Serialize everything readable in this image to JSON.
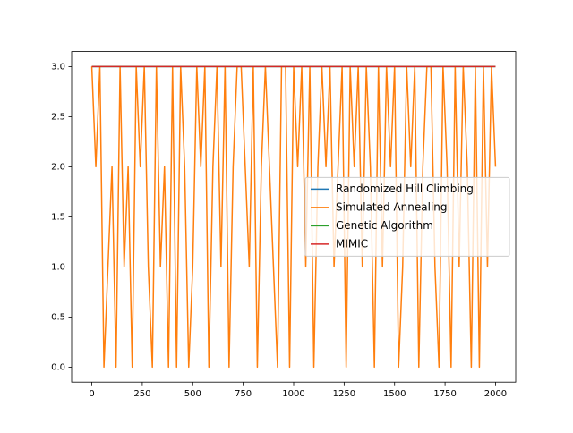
{
  "chart_data": {
    "type": "line",
    "xlim": [
      -100,
      2100
    ],
    "xticks": [
      0,
      250,
      500,
      750,
      1000,
      1250,
      1500,
      1750,
      2000
    ],
    "ylim": [
      -0.15,
      3.15
    ],
    "yticks": [
      {
        "value": 0,
        "label": "0.0"
      },
      0.5,
      {
        "value": 1,
        "label": "1.0"
      },
      1.5,
      {
        "value": 2,
        "label": "2.0"
      },
      2.5,
      {
        "value": 3,
        "label": "3.0"
      }
    ],
    "grid": false,
    "legend": "center right",
    "series": [
      {
        "name": "Randomized Hill Climbing",
        "color": "#1f77b4",
        "x": [
          0,
          2000
        ],
        "values": [
          3,
          3
        ]
      },
      {
        "name": "Simulated Annealing",
        "color": "#ff7f0e",
        "x": [
          0,
          20,
          40,
          60,
          80,
          100,
          120,
          140,
          160,
          180,
          200,
          220,
          240,
          260,
          280,
          300,
          320,
          340,
          360,
          380,
          400,
          420,
          440,
          460,
          480,
          500,
          520,
          540,
          560,
          580,
          600,
          620,
          640,
          660,
          680,
          700,
          720,
          740,
          760,
          780,
          800,
          820,
          840,
          860,
          880,
          900,
          920,
          940,
          960,
          980,
          1000,
          1020,
          1040,
          1060,
          1080,
          1100,
          1120,
          1140,
          1160,
          1180,
          1200,
          1220,
          1240,
          1260,
          1280,
          1300,
          1320,
          1340,
          1360,
          1380,
          1400,
          1420,
          1440,
          1460,
          1480,
          1500,
          1520,
          1540,
          1560,
          1580,
          1600,
          1620,
          1640,
          1660,
          1680,
          1700,
          1720,
          1740,
          1760,
          1780,
          1800,
          1820,
          1840,
          1860,
          1880,
          1900,
          1920,
          1940,
          1960,
          1980,
          2000
        ],
        "values": [
          3,
          2,
          3,
          0,
          1,
          2,
          0,
          3,
          1,
          2,
          0,
          3,
          2,
          3,
          1,
          0,
          3,
          1,
          2,
          0,
          3,
          0,
          3,
          2,
          0,
          1,
          3,
          2,
          3,
          0,
          2,
          3,
          1,
          3,
          0,
          2,
          3,
          3,
          2,
          1,
          3,
          0,
          2,
          3,
          2,
          1,
          0,
          3,
          3,
          0,
          3,
          2,
          3,
          1,
          3,
          0,
          2,
          3,
          2,
          3,
          1,
          2,
          3,
          0,
          3,
          2,
          3,
          1,
          3,
          2,
          0,
          3,
          1,
          3,
          2,
          3,
          0,
          1,
          3,
          2,
          3,
          0,
          2,
          3,
          3,
          1,
          0,
          3,
          2,
          0,
          3,
          1,
          3,
          2,
          0,
          3,
          0,
          3,
          1,
          3,
          2
        ]
      },
      {
        "name": "Genetic Algorithm",
        "color": "#2ca02c",
        "x": [
          0,
          2000
        ],
        "values": [
          3,
          3
        ]
      },
      {
        "name": "MIMIC",
        "color": "#d62728",
        "x": [
          0,
          2000
        ],
        "values": [
          3,
          3
        ]
      }
    ]
  }
}
